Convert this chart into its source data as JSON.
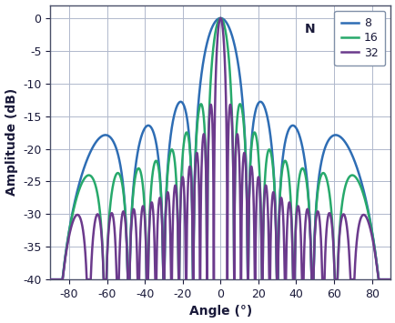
{
  "title": "",
  "xlabel": "Angle (°)",
  "ylabel": "Amplitude (dB)",
  "xlim": [
    -90,
    90
  ],
  "ylim": [
    -40,
    2
  ],
  "xticks": [
    -80,
    -60,
    -40,
    -20,
    0,
    20,
    40,
    60,
    80
  ],
  "yticks": [
    0,
    -5,
    -10,
    -15,
    -20,
    -25,
    -30,
    -35,
    -40
  ],
  "N_values": [
    8,
    16,
    32
  ],
  "colors": [
    "#2e6db4",
    "#27a96b",
    "#6b3a8c"
  ],
  "background_color": "#ffffff",
  "plot_bg_color": "#ffffff",
  "grid_color": "#b0b8cc",
  "linewidth": 1.8,
  "tick_color": "#1a1a3a",
  "label_color": "#1a1a3a"
}
